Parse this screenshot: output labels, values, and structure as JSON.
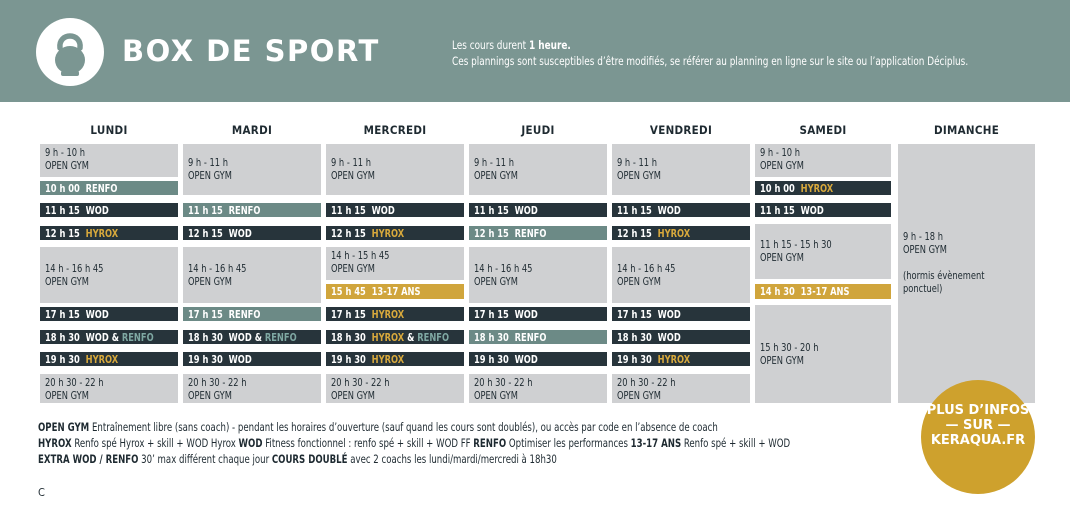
{
  "header": {
    "title": "BOX DE SPORT",
    "info_line1_prefix": "Les cours durent ",
    "info_line1_bold": "1 heure.",
    "info_line2": "Ces plannings sont susceptibles d’être modifiés, se référer au planning en ligne sur le site ou l’application Déciplus."
  },
  "days": [
    "LUNDI",
    "MARDI",
    "MERCREDI",
    "JEUDI",
    "VENDREDI",
    "SAMEDI",
    "DIMANCHE"
  ],
  "schedule": {
    "lundi": [
      {
        "time": "9 h - 10 h",
        "label": "OPEN GYM"
      },
      {
        "time": "10 h 00",
        "label": "RENFO"
      },
      {
        "time": "11 h 15",
        "label": "WOD"
      },
      {
        "time": "12 h 15",
        "label": "HYROX"
      },
      {
        "time": "14 h - 16 h 45",
        "label": "OPEN GYM"
      },
      {
        "time": "17 h 15",
        "label": "WOD"
      },
      {
        "time": "18 h 30",
        "label": "WOD",
        "sep": "&",
        "label2": "RENFO"
      },
      {
        "time": "19 h 30",
        "label": "HYROX"
      },
      {
        "time": "20 h 30 - 22 h",
        "label": "OPEN GYM"
      }
    ],
    "mardi": [
      {
        "time": "9 h - 11 h",
        "label": "OPEN GYM"
      },
      {
        "time": "11 h 15",
        "label": "RENFO"
      },
      {
        "time": "12 h 15",
        "label": "WOD"
      },
      {
        "time": "14 h - 16 h 45",
        "label": "OPEN GYM"
      },
      {
        "time": "17 h 15",
        "label": "RENFO"
      },
      {
        "time": "18 h 30",
        "label": "WOD",
        "sep": "&",
        "label2": "RENFO"
      },
      {
        "time": "19 h 30",
        "label": "WOD"
      },
      {
        "time": "20 h 30 - 22 h",
        "label": "OPEN GYM"
      }
    ],
    "mercredi": [
      {
        "time": "9 h - 11 h",
        "label": "OPEN GYM"
      },
      {
        "time": "11 h 15",
        "label": "WOD"
      },
      {
        "time": "12 h 15",
        "label": "HYROX"
      },
      {
        "time": "14 h - 15 h 45",
        "label": "OPEN GYM"
      },
      {
        "time": "15 h 45",
        "label": "13-17 ANS"
      },
      {
        "time": "17 h 15",
        "label": "HYROX"
      },
      {
        "time": "18 h 30",
        "label": "HYROX",
        "sep": "&",
        "label2": "RENFO"
      },
      {
        "time": "19 h 30",
        "label": "HYROX"
      },
      {
        "time": "20 h 30 - 22 h",
        "label": "OPEN GYM"
      }
    ],
    "jeudi": [
      {
        "time": "9 h - 11 h",
        "label": "OPEN GYM"
      },
      {
        "time": "11 h 15",
        "label": "WOD"
      },
      {
        "time": "12 h 15",
        "label": "RENFO"
      },
      {
        "time": "14 h - 16 h 45",
        "label": "OPEN GYM"
      },
      {
        "time": "17 h 15",
        "label": "WOD"
      },
      {
        "time": "18 h 30",
        "label": "RENFO"
      },
      {
        "time": "19 h 30",
        "label": "WOD"
      },
      {
        "time": "20 h 30 - 22 h",
        "label": "OPEN GYM"
      }
    ],
    "vendredi": [
      {
        "time": "9 h - 11 h",
        "label": "OPEN GYM"
      },
      {
        "time": "11 h 15",
        "label": "WOD"
      },
      {
        "time": "12 h 15",
        "label": "HYROX"
      },
      {
        "time": "14 h - 16 h 45",
        "label": "OPEN GYM"
      },
      {
        "time": "17 h 15",
        "label": "WOD"
      },
      {
        "time": "18 h 30",
        "label": "WOD"
      },
      {
        "time": "19 h 30",
        "label": "HYROX"
      },
      {
        "time": "20 h 30 - 22 h",
        "label": "OPEN GYM"
      }
    ],
    "samedi": [
      {
        "time": "9 h - 10 h",
        "label": "OPEN GYM"
      },
      {
        "time": "10 h 00",
        "label": "HYROX"
      },
      {
        "time": "11 h 15",
        "label": "WOD"
      },
      {
        "time": "11 h 15 - 15 h 30",
        "label": "OPEN GYM"
      },
      {
        "time": "14 h 30",
        "label": "13-17 ANS"
      },
      {
        "time": "15 h 30 - 20 h",
        "label": "OPEN GYM"
      }
    ],
    "dimanche": [
      {
        "time": "9 h - 18 h",
        "label": "OPEN GYM",
        "note1": "(hormis évènement",
        "note2": "ponctuel)"
      }
    ]
  },
  "badge": {
    "line1": "PLUS D’INFOS",
    "line2": "— SUR —",
    "line3": "KERAQUA.FR"
  },
  "legend": {
    "l1_b1": "OPEN GYM",
    "l1_t1": " Entraînement libre (sans coach) - pendant les horaires d’ouverture (sauf quand les cours sont doublés), ou accès par code en l’absence de coach",
    "l2_b1": "HYROX",
    "l2_t1": " Renfo spé Hyrox + skill + WOD Hyrox ",
    "l2_b2": "WOD",
    "l2_t2": " Fitness fonctionnel : renfo spé + skill + WOD FF ",
    "l2_b3": "RENFO",
    "l2_t3": " Optimiser les performances ",
    "l2_b4": "13-17 ANS",
    "l2_t4": " Renfo spé + skill + WOD",
    "l3_b1": "EXTRA WOD / RENFO",
    "l3_t1": " 30’ max différent chaque jour ",
    "l3_b2": "COURS DOUBLÉ",
    "l3_t2": " avec 2 coachs les lundi/mardi/mercredi à 18h30"
  },
  "footer": {
    "letter": "C"
  },
  "colors": {
    "header": "#7b9692",
    "light": "#cfd0d2",
    "dark": "#27343b",
    "teal": "#6c8a86",
    "yellow": "#d0a53c",
    "badge": "#cea12d"
  }
}
